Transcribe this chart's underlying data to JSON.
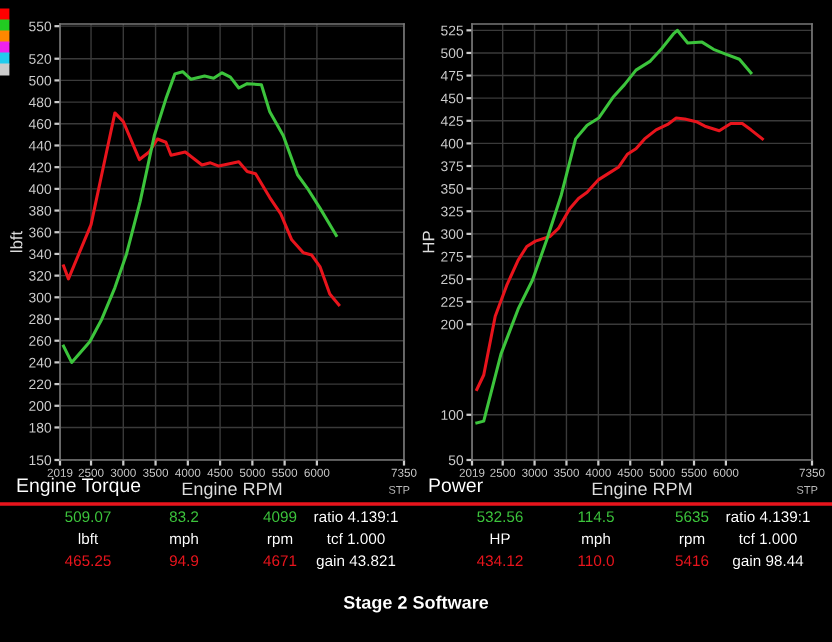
{
  "chart_data": [
    {
      "type": "line",
      "title": "Stage 2 Software",
      "xlabel": "Engine RPM",
      "ylabel": "lbft",
      "grid": true,
      "legend": false,
      "marker": "none",
      "line_style": "solid",
      "xlim": [
        2019,
        7350
      ],
      "xticks": [
        2019,
        2500,
        3000,
        3500,
        4000,
        4500,
        5000,
        5500,
        6000,
        7350
      ],
      "ylim": [
        150,
        552
      ],
      "yticks": [
        150,
        180,
        200,
        220,
        240,
        260,
        280,
        300,
        320,
        340,
        360,
        380,
        400,
        420,
        440,
        460,
        480,
        500,
        520,
        550
      ],
      "series": [
        {
          "color": "#e8141c",
          "x": [
            2074,
            2150,
            2500,
            2740,
            2870,
            3000,
            3250,
            3400,
            3530,
            3660,
            3740,
            3960,
            4220,
            4350,
            4480,
            4790,
            4920,
            5050,
            5270,
            5440,
            5610,
            5790,
            5920,
            6050,
            6200,
            6340
          ],
          "values": [
            329,
            317,
            367,
            434,
            470,
            462,
            427,
            434,
            446,
            443,
            431,
            434,
            422,
            424,
            421,
            425,
            416,
            414,
            392,
            377,
            353,
            341,
            339,
            328,
            303,
            293
          ]
        },
        {
          "color": "#3cc43c",
          "x": [
            2074,
            2200,
            2480,
            2660,
            2870,
            3050,
            3260,
            3480,
            3660,
            3800,
            3920,
            4050,
            4260,
            4400,
            4530,
            4660,
            4790,
            4920,
            5140,
            5270,
            5480,
            5700,
            5870,
            6050,
            6300
          ],
          "values": [
            255,
            240,
            259,
            279,
            309,
            340,
            388,
            449,
            483,
            506,
            508,
            501,
            504,
            502,
            507,
            503,
            493,
            497,
            496,
            471,
            449,
            413,
            399,
            382,
            357
          ]
        }
      ],
      "annotations": [
        "Engine Torque",
        "STP",
        "509.07",
        "83.2",
        "4099",
        "ratio 4.139:1",
        "lbft",
        "mph",
        "rpm",
        "tcf 1.000",
        "465.25",
        "94.9",
        "4671",
        "gain 43.821"
      ]
    },
    {
      "type": "line",
      "xlabel": "Engine RPM",
      "ylabel": "HP",
      "grid": true,
      "legend": false,
      "marker": "none",
      "line_style": "solid",
      "xlim": [
        2019,
        7350
      ],
      "xticks": [
        2019,
        2500,
        3000,
        3500,
        4000,
        4500,
        5000,
        5500,
        6000,
        7350
      ],
      "ylim": [
        50,
        532
      ],
      "yticks": [
        50,
        100,
        200,
        225,
        250,
        275,
        300,
        325,
        350,
        375,
        400,
        425,
        450,
        475,
        500,
        525
      ],
      "series": [
        {
          "color": "#e8141c",
          "x": [
            2095,
            2203,
            2383,
            2563,
            2743,
            2878,
            3013,
            3239,
            3374,
            3554,
            3689,
            3824,
            4005,
            4185,
            4320,
            4455,
            4590,
            4725,
            4905,
            5086,
            5221,
            5356,
            5536,
            5671,
            5896,
            6077,
            6257,
            6392,
            6572
          ],
          "values": [
            128,
            144,
            209,
            243,
            271,
            286,
            292,
            297,
            306,
            328,
            339,
            346,
            360,
            368,
            374,
            388,
            394,
            405,
            415,
            421,
            428,
            427,
            424,
            419,
            414,
            422,
            422,
            415,
            405
          ]
        },
        {
          "color": "#3cc43c",
          "x": [
            2095,
            2203,
            2473,
            2743,
            2968,
            3194,
            3419,
            3644,
            3824,
            4005,
            4230,
            4410,
            4590,
            4815,
            4995,
            5176,
            5239,
            5401,
            5626,
            5806,
            5986,
            6212,
            6392
          ],
          "values": [
            91,
            93,
            167,
            217,
            249,
            294,
            343,
            405,
            420,
            428,
            451,
            465,
            481,
            491,
            505,
            521,
            525,
            511,
            512,
            504,
            499,
            493,
            478
          ]
        }
      ],
      "annotations": [
        "Power",
        "STP",
        "532.56",
        "114.5",
        "5635",
        "ratio 4.139:1",
        "HP",
        "mph",
        "rpm",
        "tcf 1.000",
        "434.12",
        "110.0",
        "5416",
        "gain 98.44"
      ]
    }
  ]
}
